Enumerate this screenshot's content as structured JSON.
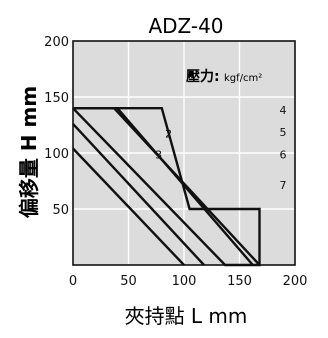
{
  "chart_data": {
    "type": "line",
    "title": "ADZ-40",
    "xlabel": "夾持點 L mm",
    "ylabel": "偏移量 H mm",
    "xlim": [
      0,
      200
    ],
    "ylim": [
      0,
      200
    ],
    "xticks": [
      0,
      50,
      100,
      150,
      200
    ],
    "yticks": [
      50,
      100,
      150,
      200
    ],
    "grid": true,
    "background_color": "#dcdcdc",
    "line_color": "#111111",
    "annotation": {
      "label": "壓力:",
      "unit": "kgf/cm²"
    },
    "series": [
      {
        "name": "2",
        "points": [
          [
            52,
            140
          ],
          [
            52,
            140
          ]
        ]
      },
      {
        "name": "2",
        "points": [
          [
            0,
            140
          ],
          [
            80,
            140
          ],
          [
            105,
            50
          ],
          [
            168,
            50
          ],
          [
            168,
            0
          ],
          [
            137,
            0
          ],
          [
            0,
            140
          ]
        ]
      },
      {
        "name": "3",
        "points": [
          [
            0,
            125
          ],
          [
            0,
            125
          ]
        ]
      },
      {
        "name": "4",
        "points": [
          [
            0,
            140
          ],
          [
            37,
            140
          ],
          [
            168,
            0
          ]
        ]
      },
      {
        "name": "5",
        "points": [
          [
            15,
            140
          ],
          [
            40,
            140
          ],
          [
            162,
            0
          ]
        ]
      },
      {
        "name": "6",
        "points": [
          [
            0,
            126
          ],
          [
            0,
            126
          ],
          [
            118,
            0
          ]
        ]
      },
      {
        "name": "7",
        "points": [
          [
            0,
            104
          ],
          [
            0,
            104
          ],
          [
            100,
            0
          ]
        ]
      }
    ],
    "curve_labels": [
      {
        "label": "2",
        "x": 83,
        "y": 114
      },
      {
        "label": "3",
        "x": 74,
        "y": 95
      },
      {
        "label": "4",
        "x": 186,
        "y": 135
      },
      {
        "label": "5",
        "x": 186,
        "y": 115
      },
      {
        "label": "6",
        "x": 186,
        "y": 95
      },
      {
        "label": "7",
        "x": 186,
        "y": 68
      }
    ]
  }
}
